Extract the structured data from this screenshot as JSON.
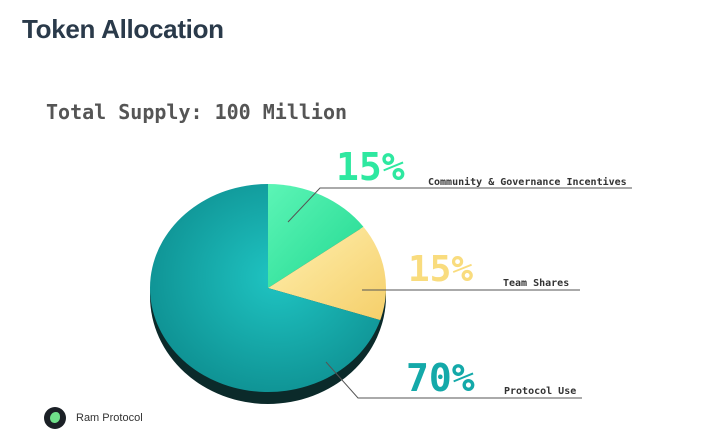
{
  "header": {
    "title": "Token Allocation"
  },
  "chart_data": {
    "type": "pie",
    "title": "Total Supply: 100 Million",
    "slices": [
      {
        "label": "Community & Governance Incentives",
        "value": 15,
        "display": "15%",
        "color": "#2ee8a0"
      },
      {
        "label": "Team Shares",
        "value": 15,
        "display": "15%",
        "color": "#f9dc7e"
      },
      {
        "label": "Protocol Use",
        "value": 70,
        "display": "70%",
        "color": "#14a9a9"
      }
    ]
  },
  "footer": {
    "brand": "Ram Protocol"
  }
}
